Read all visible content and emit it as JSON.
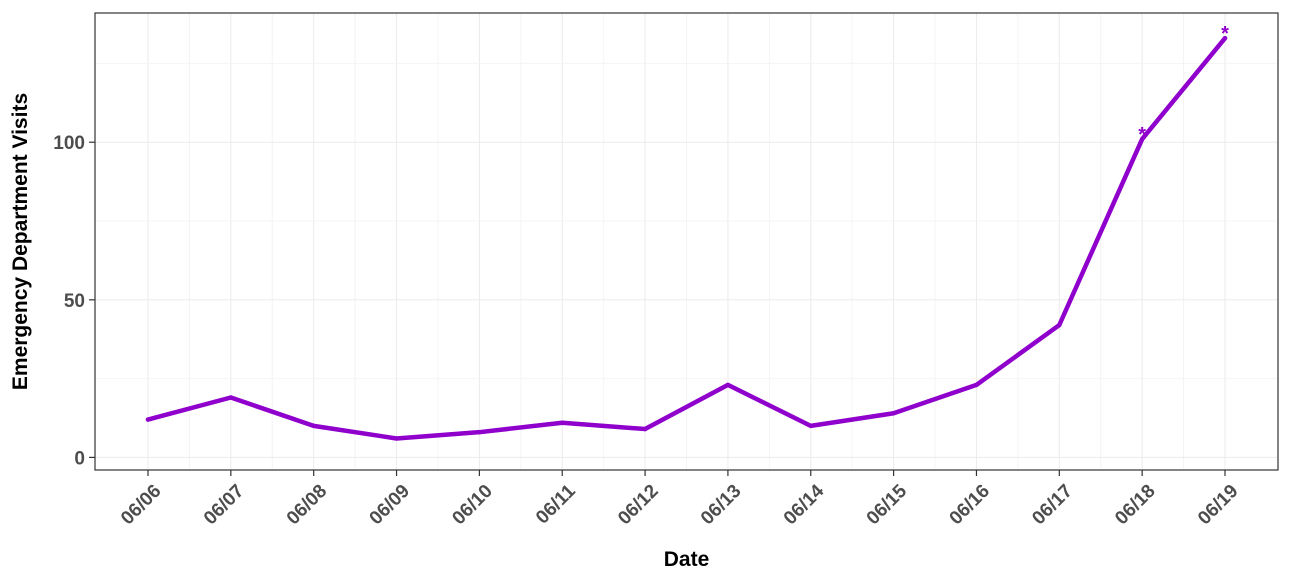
{
  "chart_data": {
    "type": "line",
    "title": "",
    "xlabel": "Date",
    "ylabel": "Emergency Department Visits",
    "x": [
      "06/06",
      "06/07",
      "06/08",
      "06/09",
      "06/10",
      "06/11",
      "06/12",
      "06/13",
      "06/14",
      "06/15",
      "06/16",
      "06/17",
      "06/18",
      "06/19"
    ],
    "series": [
      {
        "name": "",
        "values": [
          12,
          19,
          10,
          6,
          8,
          11,
          9,
          23,
          10,
          14,
          23,
          42,
          101,
          133
        ],
        "color": "#8f00cc",
        "annotations": [
          {
            "x": "06/18",
            "text": "*"
          },
          {
            "x": "06/19",
            "text": "*"
          }
        ]
      }
    ],
    "y_ticks": [
      0,
      50,
      100
    ],
    "ylim": [
      -4,
      141
    ],
    "grid": true,
    "legend": "none"
  }
}
